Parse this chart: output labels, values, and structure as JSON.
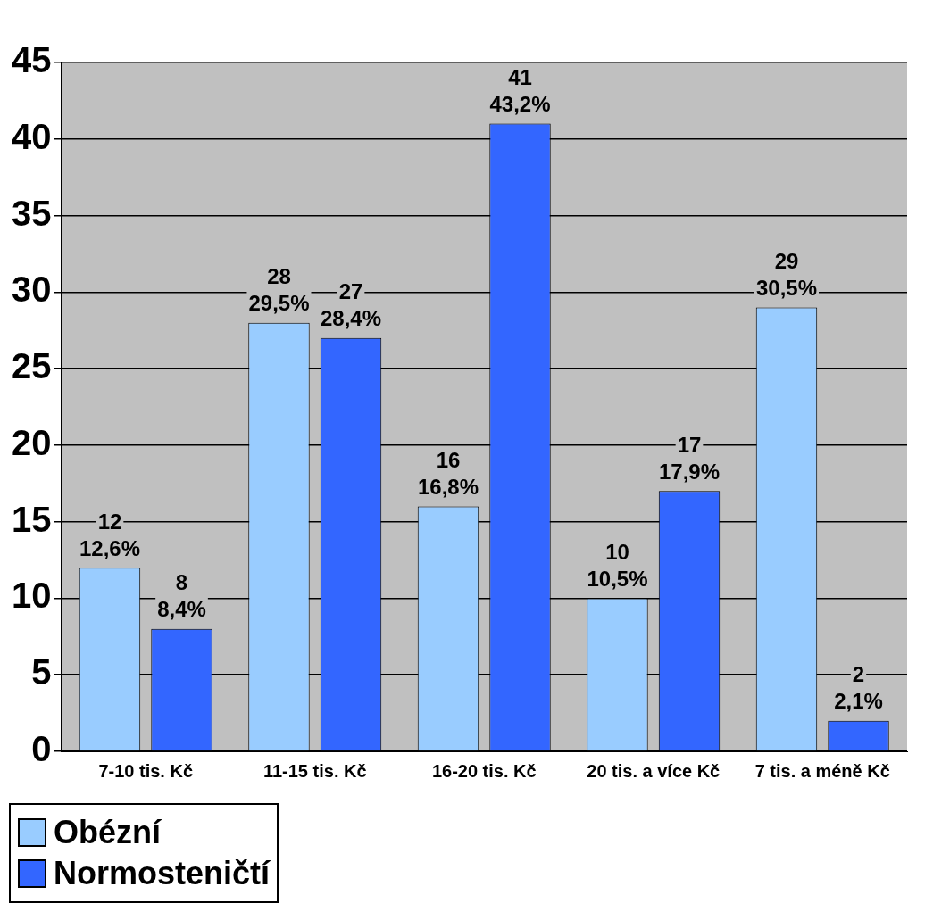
{
  "chart_data": {
    "type": "bar",
    "categories": [
      "7-10 tis. Kč",
      "11-15 tis. Kč",
      "16-20 tis. Kč",
      "20 tis. a více Kč",
      "7 tis. a méně Kč"
    ],
    "series": [
      {
        "name": "Obézní",
        "color": "#99ccff",
        "values": [
          12,
          28,
          16,
          10,
          29
        ],
        "value_labels": [
          "12\n12,6%",
          "28\n29,5%",
          "16\n16,8%",
          "10\n10,5%",
          "29\n30,5%"
        ]
      },
      {
        "name": "Normosteničtí",
        "color": "#3366ff",
        "values": [
          8,
          27,
          41,
          17,
          2
        ],
        "value_labels": [
          "8\n8,4%",
          "27\n28,4%",
          "41\n43,2%",
          "17\n17,9%",
          "2\n2,1%"
        ]
      }
    ],
    "ylim": [
      0,
      45
    ],
    "yticks": [
      0,
      5,
      10,
      15,
      20,
      25,
      30,
      35,
      40,
      45
    ],
    "grid": "y",
    "legend": "bottom left"
  }
}
